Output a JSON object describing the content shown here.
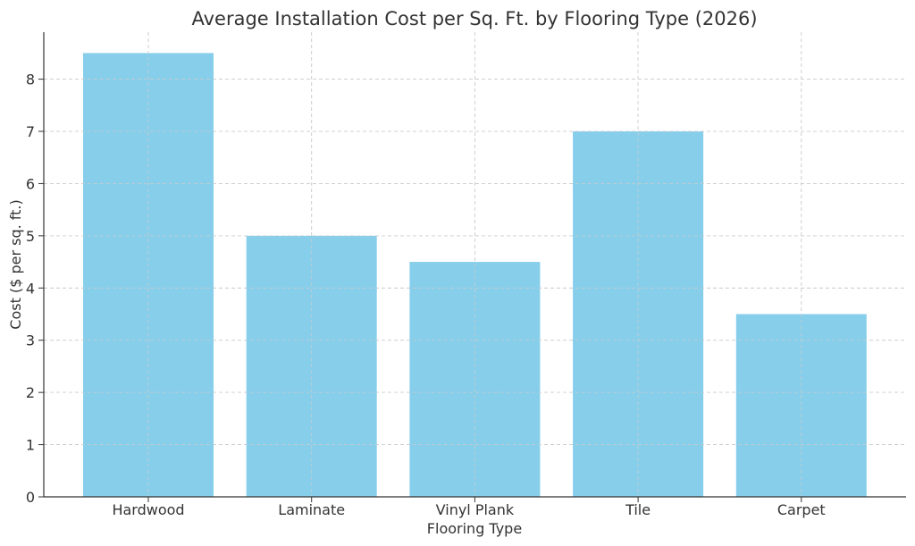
{
  "chart_data": {
    "type": "bar",
    "title": "Average Installation Cost per Sq. Ft. by Flooring Type (2026)",
    "xlabel": "Flooring Type",
    "ylabel": "Cost ($ per sq. ft.)",
    "categories": [
      "Hardwood",
      "Laminate",
      "Vinyl Plank",
      "Tile",
      "Carpet"
    ],
    "values": [
      8.5,
      5.0,
      4.5,
      7.0,
      3.5
    ],
    "ylim": [
      0,
      8.9
    ],
    "yticks": [
      "0",
      "1",
      "2",
      "3",
      "4",
      "5",
      "6",
      "7",
      "8"
    ],
    "grid": true,
    "colors": {
      "bar": "#87CEEB",
      "grid": "#cccccc",
      "axis": "#333333",
      "text": "#333333"
    }
  }
}
